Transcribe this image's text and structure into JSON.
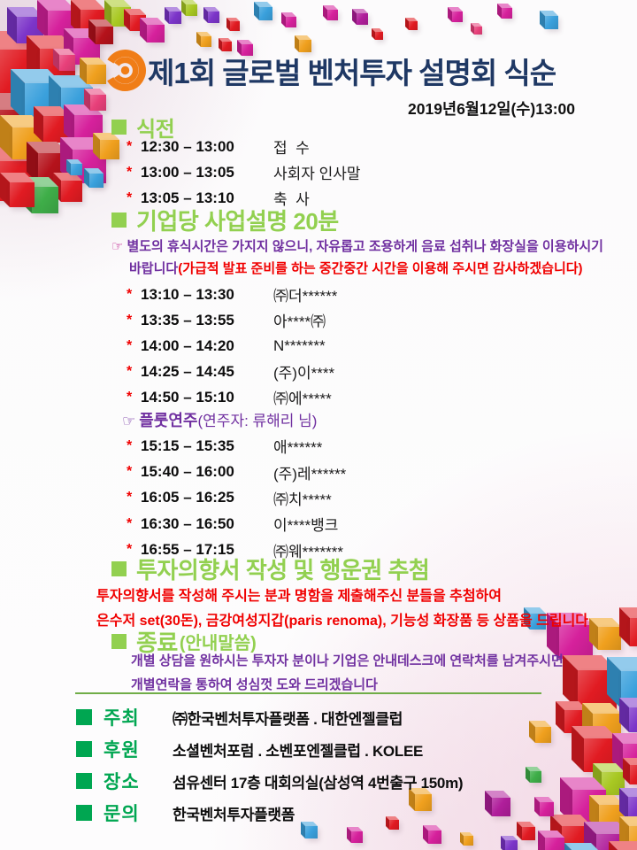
{
  "theme": {
    "title_color": "#1f3864",
    "section_green": "#92d050",
    "footer_green": "#00a651",
    "divider_green": "#70ad47",
    "red": "#f00000",
    "purple": "#7030a0",
    "note_marker_color": "#c02090",
    "logo_orange": "#f07d17",
    "cube_palette": [
      "#e11b22",
      "#b5121b",
      "#d6219c",
      "#b01e9b",
      "#3aa0dc",
      "#7c35c9",
      "#f0a01e",
      "#3fae49",
      "#a8c822",
      "#e8407a"
    ]
  },
  "markers": {
    "item": "*",
    "note": "☞"
  },
  "header": {
    "title": "제1회 글로벌 벤처투자 설명회 식순",
    "datetime": "2019년6월12일(수)13:00"
  },
  "sections": {
    "pre": {
      "heading": "식전",
      "items": [
        {
          "time": "12:30 – 13:00",
          "title": "접  수"
        },
        {
          "time": "13:00 – 13:05",
          "title": "사회자 인사말"
        },
        {
          "time": "13:05 – 13:10",
          "title": "축  사"
        }
      ]
    },
    "biz": {
      "heading": "기업당 사업설명 20분",
      "note_line1": "별도의 휴식시간은 가지지 않으니, 자유롭고 조용하게 음료 섭취나 화장실을 이용하시기",
      "note_line2_purple": "바랍니다",
      "note_line2_red": "(가급적 발표 준비를 하는 중간중간 시간을 이용해 주시면 감사하겠습니다)",
      "items_before": [
        {
          "time": "13:10 – 13:30",
          "title": "㈜더******"
        },
        {
          "time": "13:35 – 13:55",
          "title": "아****㈜"
        },
        {
          "time": "14:00 – 14:20",
          "title": "N*******"
        },
        {
          "time": "14:25 – 14:45",
          "title": "(주)이****"
        },
        {
          "time": "14:50 – 15:10",
          "title": "㈜에*****"
        }
      ],
      "interlude_bold": "플룻연주",
      "interlude_rest": "(연주자: 류해리 님)",
      "items_after": [
        {
          "time": "15:15 – 15:35",
          "title": "애******"
        },
        {
          "time": "15:40 – 16:00",
          "title": "(주)레******"
        },
        {
          "time": "16:05 – 16:25",
          "title": "㈜치*****"
        },
        {
          "time": "16:30 – 16:50",
          "title": "이****뱅크"
        },
        {
          "time": "16:55 – 17:15",
          "title": "㈜웨*******"
        }
      ]
    },
    "lottery": {
      "heading": "투자의향서 작성 및 행운권 추첨",
      "line1": "투자의향서를 작성해 주시는 분과 명함을 제출해주신 분들을 추첨하여",
      "line2": "은수저 set(30돈), 금강여성지갑(paris renoma), 기능성 화장품 등 상품을 드립니다"
    },
    "closing": {
      "heading": "종료",
      "suffix": "(안내말씀)",
      "line1": "개별 상담을 원하시는 투자자 분이나 기업은 안내데스크에 연락처를 남겨주시면",
      "line2": "개별연락을 통하여 성심껏 도와 드리겠습니다"
    }
  },
  "footer": {
    "rows": [
      {
        "label": "주최",
        "value": "㈜한국벤처투자플랫폼 . 대한엔젤클럽"
      },
      {
        "label": "후원",
        "value": "소셜벤처포럼 . 소벤포엔젤클럽 . KOLEE"
      },
      {
        "label": "장소",
        "value": "섬유센터 17층 대회의실(삼성역 4번출구 150m)"
      },
      {
        "label": "문의",
        "value": "한국벤처투자플랫폼"
      }
    ]
  }
}
